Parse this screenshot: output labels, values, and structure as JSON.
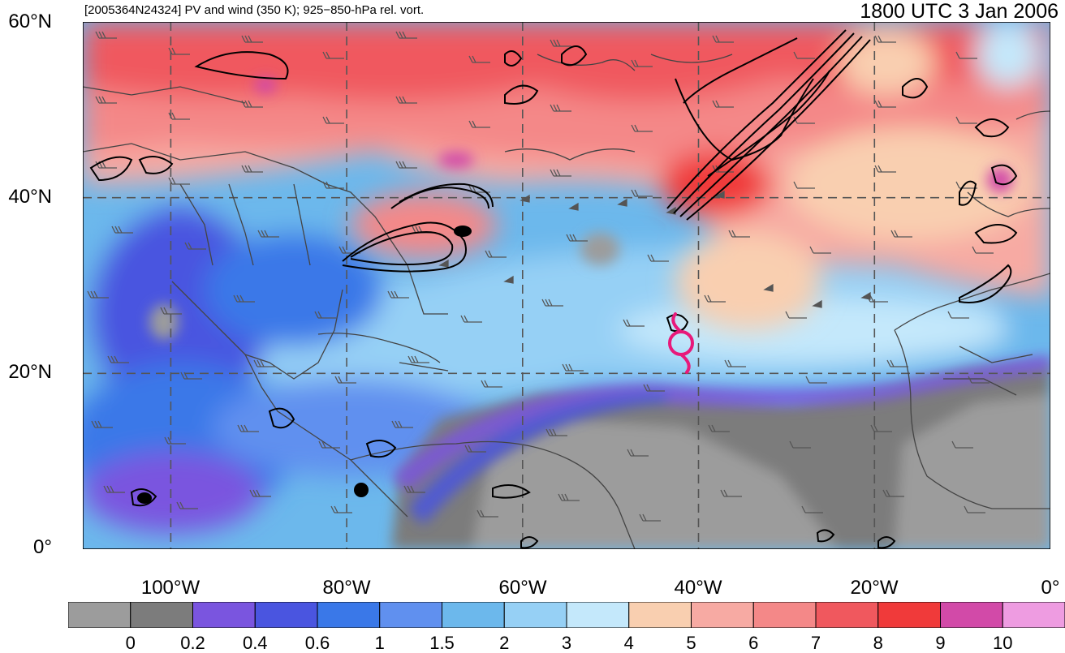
{
  "header": {
    "left_title": "[2005364N24324] PV and wind (350 K); 925−850-hPa rel. vort.",
    "right_title": "1800 UTC 3 Jan 2006"
  },
  "map": {
    "lat_labels": [
      "60°N",
      "40°N",
      "20°N",
      "0°"
    ],
    "lon_labels": [
      "100°W",
      "80°W",
      "60°W",
      "40°W",
      "20°W",
      "0°"
    ],
    "extent": {
      "lon_min": -110,
      "lon_max": 0,
      "lat_min": 0,
      "lat_max": 60
    },
    "storm_symbol": "tropical-cyclone-icon",
    "storm_color": "#e8197a"
  },
  "colorbar": {
    "labels": [
      "0",
      "0.2",
      "0.4",
      "0.6",
      "1",
      "1.5",
      "2",
      "3",
      "4",
      "5",
      "6",
      "7",
      "8",
      "9",
      "10"
    ],
    "colors": [
      "#9c9c9c",
      "#7c7c7c",
      "#7a55df",
      "#4a55e0",
      "#3a78e8",
      "#6090ef",
      "#6cb8ec",
      "#96d0f5",
      "#c4e8fb",
      "#f9cfb0",
      "#f7aaa3",
      "#f48888",
      "#f0585e",
      "#f03a3a",
      "#d24aa8",
      "#ee9ce1"
    ]
  }
}
